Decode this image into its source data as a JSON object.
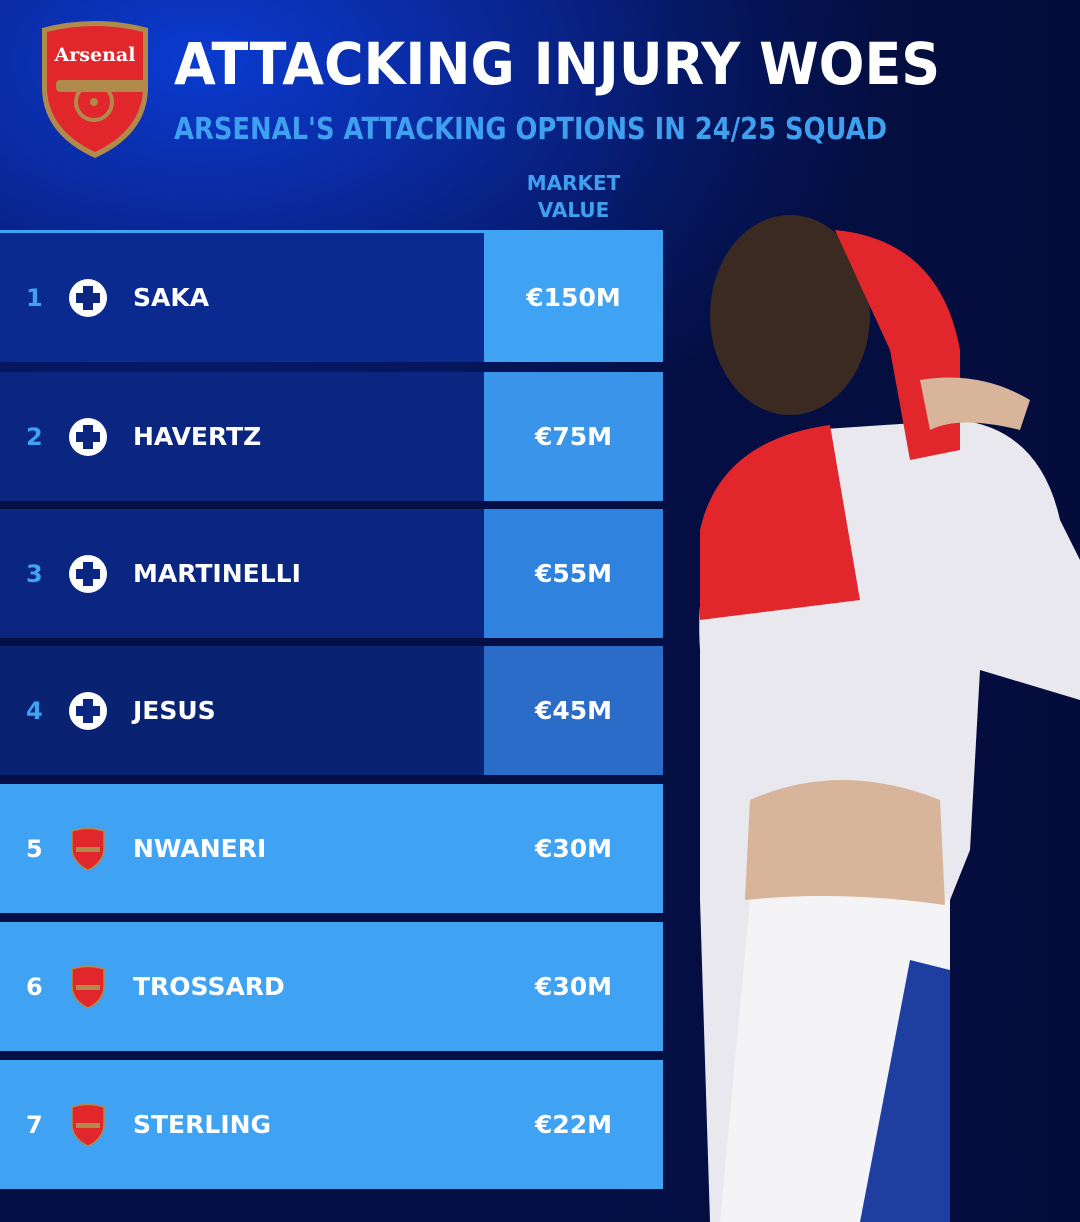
{
  "header": {
    "title": "ATTACKING INJURY WOES",
    "subtitle": "ARSENAL'S ATTACKING OPTIONS IN 24/25 SQUAD",
    "crest_text": "Arsenal"
  },
  "table": {
    "column_header_line1": "MARKET",
    "column_header_line2": "VALUE",
    "rows": [
      {
        "rank": "1",
        "status_icon": "injury-cross-icon",
        "name": "SAKA",
        "value": "€150M",
        "injured": true
      },
      {
        "rank": "2",
        "status_icon": "injury-cross-icon",
        "name": "HAVERTZ",
        "value": "€75M",
        "injured": true
      },
      {
        "rank": "3",
        "status_icon": "injury-cross-icon",
        "name": "MARTINELLI",
        "value": "€55M",
        "injured": true
      },
      {
        "rank": "4",
        "status_icon": "injury-cross-icon",
        "name": "JESUS",
        "value": "€45M",
        "injured": true
      },
      {
        "rank": "5",
        "status_icon": "arsenal-crest-icon",
        "name": "NWANERI",
        "value": "€30M",
        "injured": false
      },
      {
        "rank": "6",
        "status_icon": "arsenal-crest-icon",
        "name": "TROSSARD",
        "value": "€30M",
        "injured": false
      },
      {
        "rank": "7",
        "status_icon": "arsenal-crest-icon",
        "name": "STERLING",
        "value": "€22M",
        "injured": false
      }
    ]
  },
  "colors": {
    "accent": "#3fa2f2",
    "injured_row": "#0a2a8c",
    "fit_row": "#3fa2f2",
    "arsenal_red": "#e1262c"
  }
}
